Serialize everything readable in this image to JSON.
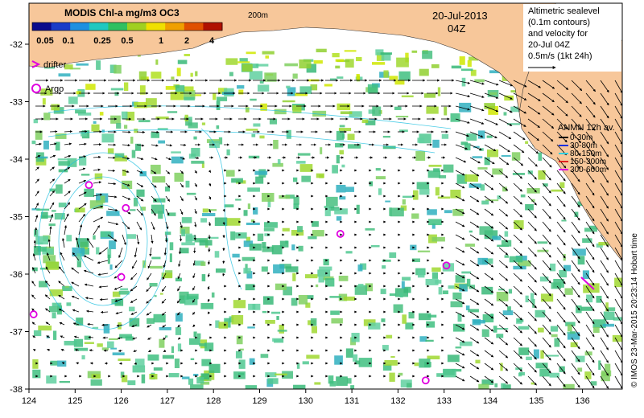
{
  "title": {
    "product": "MODIS Chl-a mg/m3 OC3",
    "date": "20-Jul-2013",
    "time": "04Z",
    "isobath": "200m"
  },
  "colorbar": {
    "ticks": [
      "0.05",
      "0.1",
      "0.25",
      "0.5",
      "1",
      "2",
      "4"
    ],
    "colors": [
      "#0a0a8c",
      "#1a3cc8",
      "#1e90e0",
      "#20c8c0",
      "#30c060",
      "#a0d020",
      "#f0e000",
      "#f0a000",
      "#e05000",
      "#b01000"
    ]
  },
  "legend": {
    "drifter_label": "drifter",
    "argo_label": "Argo",
    "drifter_color": "#e000e0",
    "argo_color": "#e000e0"
  },
  "info_box": {
    "line1": "Altimetric sealevel",
    "line2": "(0.1m contours)",
    "line3": "and velocity for",
    "line4": "20-Jul 04Z",
    "line5": "0.5m/s (1kt 24h)"
  },
  "anmn": {
    "title": "ANMN 12h av.",
    "items": [
      {
        "label": "0-30m",
        "color": "#000000"
      },
      {
        "label": "30-80m",
        "color": "#1030e0"
      },
      {
        "label": "80-150m",
        "color": "#30d0e0"
      },
      {
        "label": "150-300m",
        "color": "#e02020"
      },
      {
        "label": "300-600m",
        "color": "#e000e0"
      }
    ]
  },
  "axes": {
    "x_ticks": [
      "124",
      "125",
      "126",
      "127",
      "128",
      "129",
      "130",
      "131",
      "132",
      "133",
      "134",
      "135",
      "136"
    ],
    "y_ticks": [
      "-32",
      "-33",
      "-34",
      "-35",
      "-36",
      "-37",
      "-38"
    ]
  },
  "credit": "© IMOS 23-Mar-2015 20:23:14 Hobart time",
  "colors": {
    "land": "#f7c79a",
    "ocean": "#ffffff",
    "contour": "#20c0e0",
    "arrow": "#000000"
  },
  "argo_floats": [
    {
      "lon": 125.3,
      "lat": -34.45
    },
    {
      "lon": 126.1,
      "lat": -34.85
    },
    {
      "lon": 126.0,
      "lat": -36.05
    },
    {
      "lon": 124.1,
      "lat": -36.7
    },
    {
      "lon": 130.75,
      "lat": -35.3
    },
    {
      "lon": 133.05,
      "lat": -35.85
    },
    {
      "lon": 132.6,
      "lat": -37.85
    }
  ]
}
